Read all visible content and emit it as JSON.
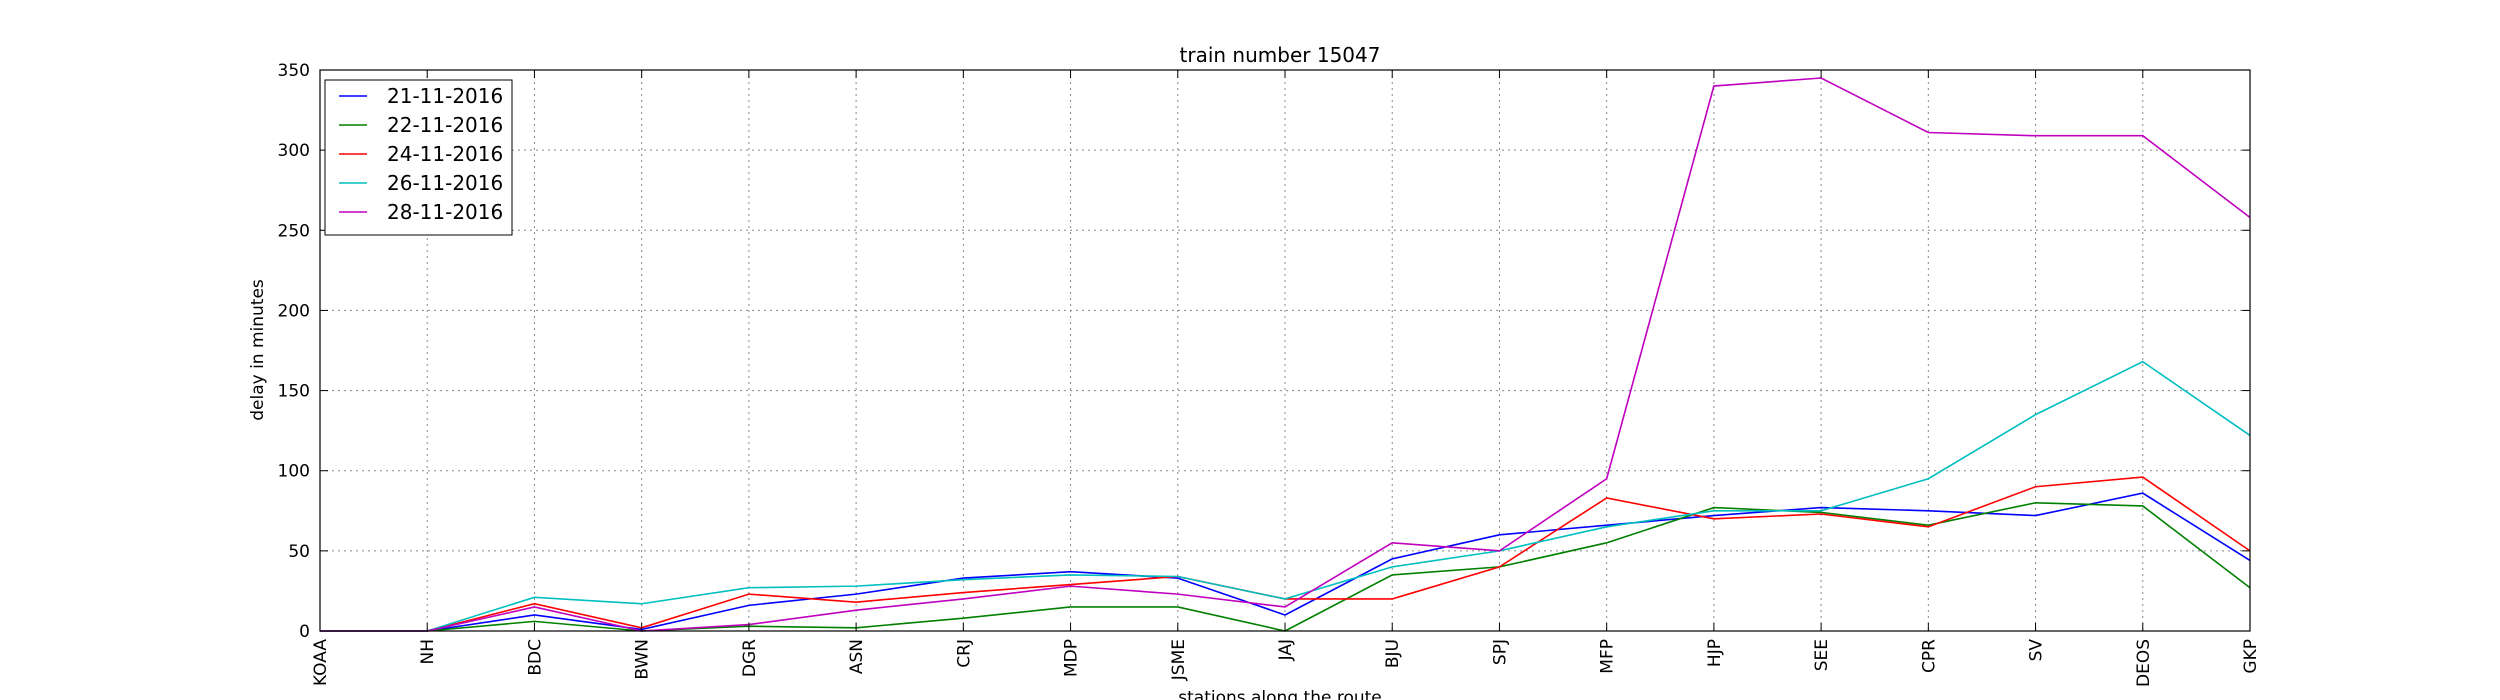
{
  "chart_data": {
    "type": "line",
    "title": "train number 15047",
    "xlabel": "stations along the route",
    "ylabel": "delay in minutes",
    "ylim": [
      0,
      350
    ],
    "yticks": [
      0,
      50,
      100,
      150,
      200,
      250,
      300,
      350
    ],
    "grid": true,
    "legend_position": "top-left",
    "categories": [
      "KOAA",
      "NH",
      "BDC",
      "BWN",
      "DGR",
      "ASN",
      "CRJ",
      "MDP",
      "JSME",
      "JAJ",
      "BJU",
      "SPJ",
      "MFP",
      "HJP",
      "SEE",
      "CPR",
      "SV",
      "DEOS",
      "GKP"
    ],
    "series": [
      {
        "name": "21-11-2016",
        "color": "#0000ff",
        "values": [
          0,
          0,
          10,
          1,
          16,
          23,
          33,
          37,
          33,
          10,
          45,
          60,
          66,
          72,
          77,
          75,
          72,
          86,
          44
        ]
      },
      {
        "name": "22-11-2016",
        "color": "#008000",
        "values": [
          0,
          0,
          6,
          0,
          3,
          2,
          8,
          15,
          15,
          0,
          35,
          40,
          55,
          77,
          74,
          66,
          80,
          78,
          27
        ]
      },
      {
        "name": "24-11-2016",
        "color": "#ff0000",
        "values": [
          0,
          0,
          17,
          2,
          23,
          18,
          24,
          29,
          34,
          20,
          20,
          40,
          83,
          70,
          73,
          65,
          90,
          96,
          50
        ]
      },
      {
        "name": "26-11-2016",
        "color": "#00bfbf",
        "values": [
          0,
          0,
          21,
          17,
          27,
          28,
          32,
          35,
          34,
          20,
          40,
          50,
          65,
          75,
          75,
          95,
          135,
          168,
          122
        ]
      },
      {
        "name": "28-11-2016",
        "color": "#bf00bf",
        "values": [
          0,
          0,
          15,
          0,
          4,
          13,
          20,
          28,
          23,
          15,
          55,
          50,
          95,
          340,
          345,
          311,
          309,
          309,
          258
        ]
      }
    ]
  }
}
